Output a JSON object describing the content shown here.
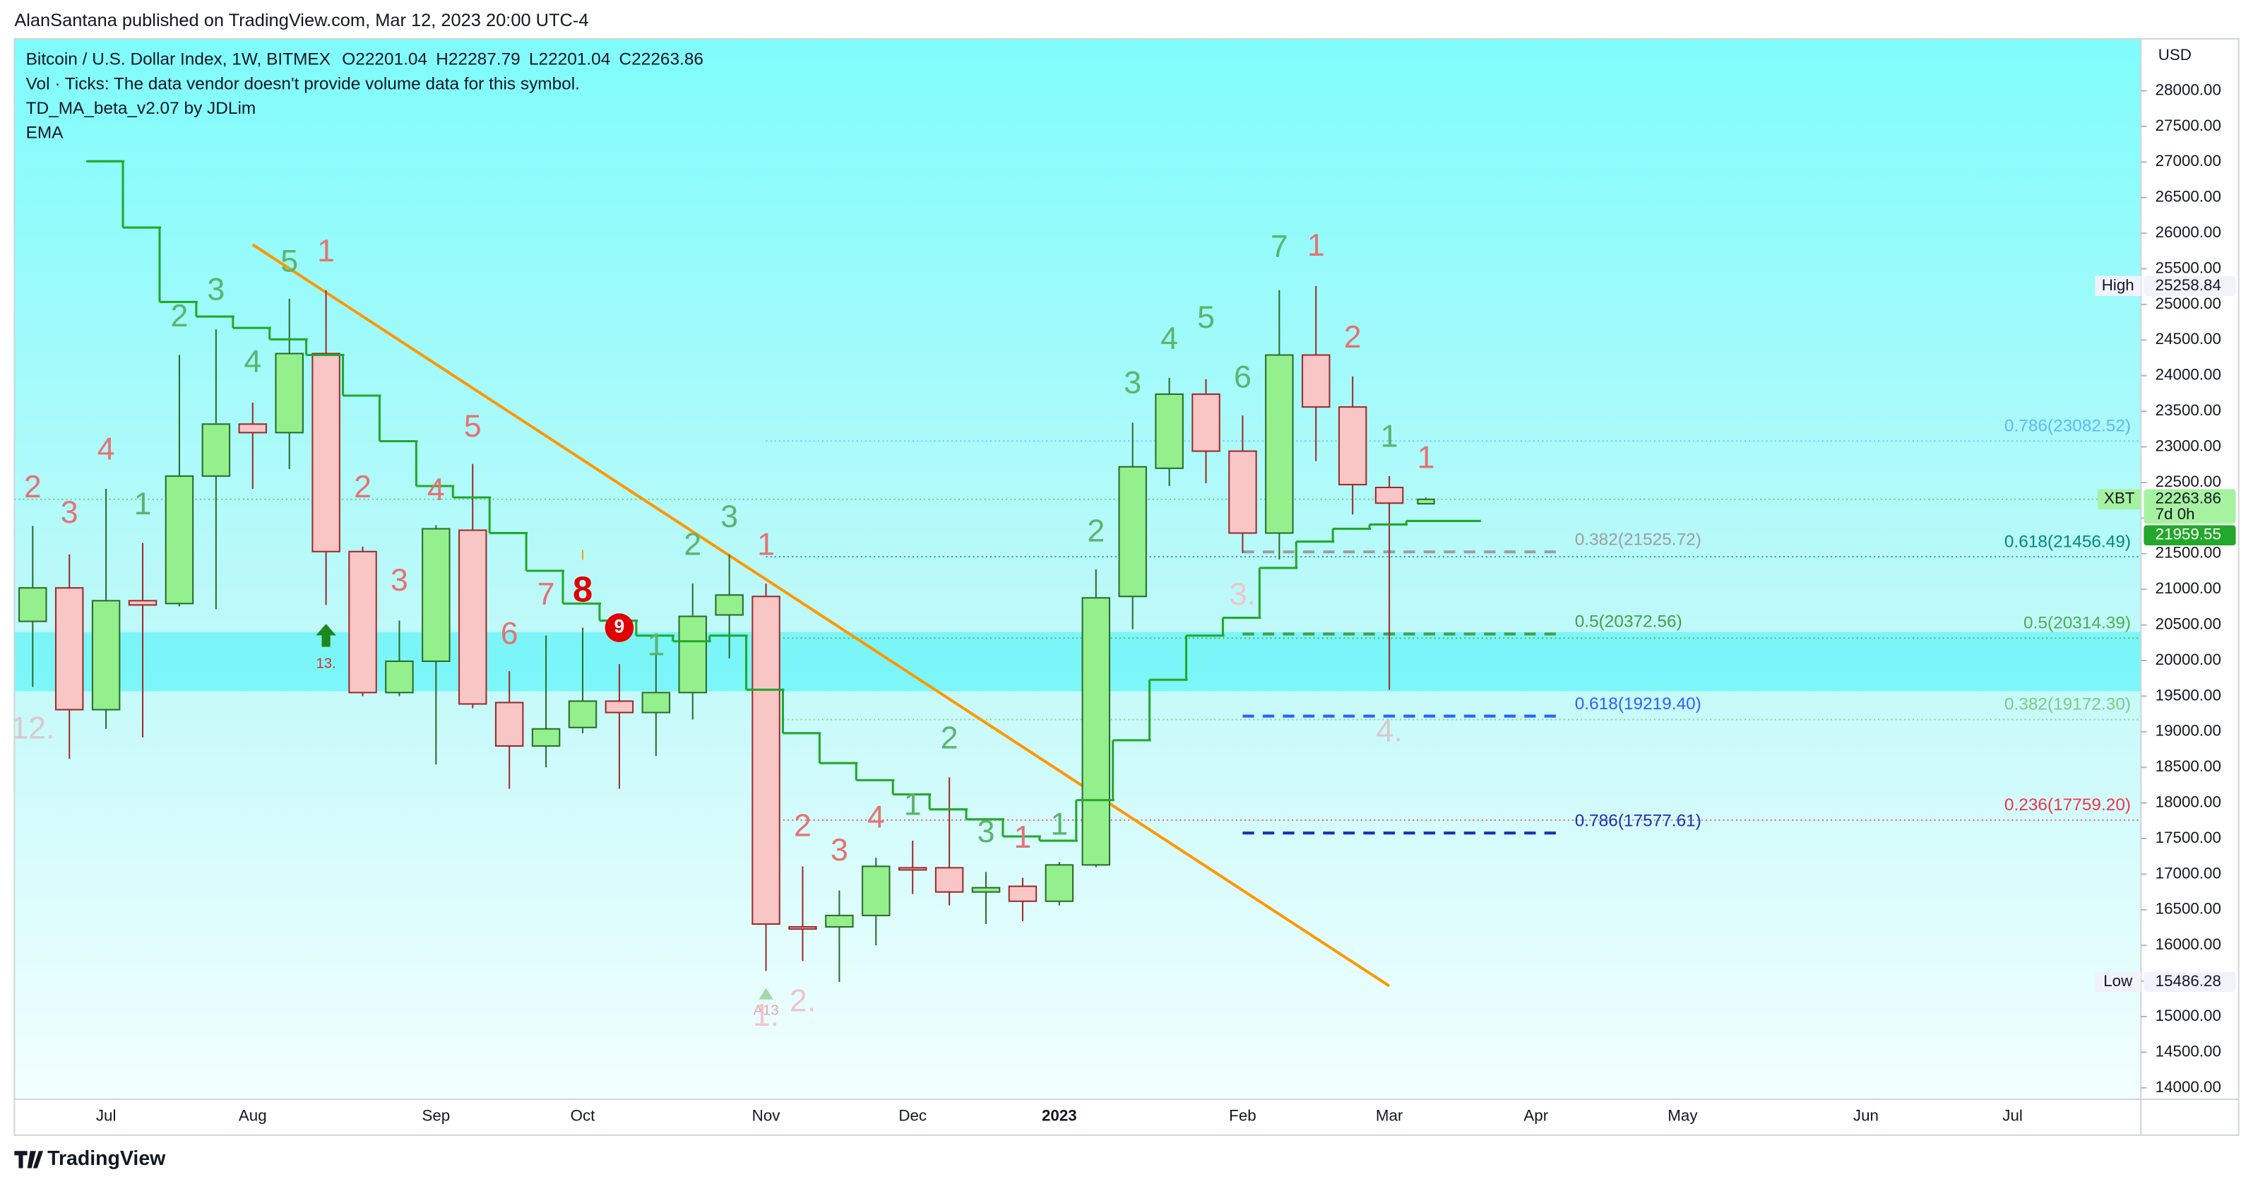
{
  "header": {
    "byline": "AlanSantana published on TradingView.com, Mar 12, 2023 20:00 UTC-4"
  },
  "footer": {
    "brand": "TradingView"
  },
  "chart_data": {
    "type": "candlestick",
    "title": "Bitcoin / U.S. Dollar Index, 1W, BITMEX",
    "ohlc_labels": [
      "O",
      "H",
      "L",
      "C"
    ],
    "notes": [
      "Vol · Ticks: The data vendor doesn't provide volume data for this symbol.",
      "TD_MA_beta_v2.07 by JDLim"
    ],
    "categories": [
      null,
      null,
      "Jul",
      null,
      null,
      null,
      "Aug",
      null,
      null,
      null,
      null,
      "Sep",
      null,
      null,
      null,
      "Oct",
      null,
      null,
      null,
      null,
      "Nov",
      null,
      null,
      null,
      "Dec",
      null,
      null,
      null,
      "2023",
      null,
      null,
      null,
      null,
      "Feb",
      null,
      null,
      null,
      "Mar",
      null,
      null,
      null,
      "Apr",
      null,
      null,
      null,
      "May",
      null,
      null,
      null,
      null,
      "Jun",
      null,
      null,
      null,
      "Jul",
      null,
      null,
      null
    ],
    "open": [
      20550,
      21020,
      19310,
      20840,
      20800,
      22590,
      23320,
      23200,
      24310,
      21530,
      19550,
      19990,
      21830,
      19410,
      18800,
      19060,
      19430,
      19270,
      19550,
      20640,
      20900,
      16260,
      16260,
      16420,
      17090,
      17090,
      16750,
      16830,
      16620,
      17130,
      20900,
      22700,
      23740,
      22940,
      21790,
      24290,
      23560,
      22430,
      22201.04,
      null,
      null,
      null,
      null,
      null,
      null,
      null,
      null,
      null,
      null,
      null,
      null,
      null,
      null,
      null,
      null,
      null,
      null,
      null
    ],
    "high": [
      21890,
      21490,
      22410,
      21650,
      24290,
      24650,
      23620,
      25080,
      25200,
      21600,
      20560,
      21900,
      22760,
      19850,
      20350,
      20460,
      19950,
      20380,
      21080,
      21490,
      21080,
      17110,
      16770,
      17230,
      17470,
      18360,
      17030,
      16950,
      17170,
      21280,
      23340,
      23970,
      23950,
      23440,
      25200,
      25258.84,
      23990,
      22590,
      22287.79,
      null,
      null,
      null,
      null,
      null,
      null,
      null,
      null,
      null,
      null,
      null,
      null,
      null,
      null,
      null,
      null,
      null,
      null,
      null
    ],
    "low": [
      19630,
      18620,
      19040,
      18920,
      20760,
      20720,
      22410,
      22690,
      20780,
      19500,
      19500,
      18540,
      19330,
      18200,
      18500,
      18980,
      18200,
      18660,
      19170,
      20030,
      15640,
      15780,
      15486.28,
      16000,
      16720,
      16560,
      16300,
      16340,
      16560,
      17100,
      20440,
      22450,
      22490,
      21510,
      21420,
      22800,
      22050,
      19590,
      22201.04,
      null,
      null,
      null,
      null,
      null,
      null,
      null,
      null,
      null,
      null,
      null,
      null,
      null,
      null,
      null,
      null,
      null,
      null,
      null
    ],
    "close": [
      21020,
      19310,
      20840,
      20780,
      22590,
      23320,
      23200,
      24310,
      21530,
      19550,
      19990,
      21850,
      19390,
      18800,
      19040,
      19430,
      19270,
      19550,
      20620,
      20920,
      16300,
      16240,
      16420,
      17110,
      17070,
      16750,
      16810,
      16620,
      17130,
      20880,
      22720,
      23740,
      22940,
      21790,
      24290,
      23560,
      22470,
      22210,
      22263.86,
      null,
      null,
      null,
      null,
      null,
      null,
      null,
      null,
      null,
      null,
      null,
      null,
      null,
      null,
      null,
      null,
      null,
      null,
      null
    ],
    "colors": {
      "up": "#93f08c",
      "up_edge": "#2b6b2b",
      "down": "#f9c6c6",
      "down_edge": "#9c2a2a"
    },
    "series": [
      {
        "name": "EMA",
        "color": "#22a82a",
        "values": [
          null,
          null,
          27010,
          26080,
          25035,
          24830,
          24670,
          24510,
          24290,
          23720,
          23080,
          22450,
          22290,
          21790,
          21260,
          20800,
          20560,
          20350,
          20270,
          20350,
          19590,
          18980,
          18560,
          18320,
          18120,
          17910,
          17770,
          17530,
          17470,
          18040,
          18880,
          19730,
          20350,
          20600,
          21300,
          21670,
          21850,
          21910,
          21959.55,
          null,
          null,
          null,
          null,
          null,
          null,
          null,
          null,
          null,
          null,
          null,
          null,
          null,
          null,
          null,
          null,
          null,
          null,
          null
        ]
      }
    ],
    "y_unit": "USD",
    "symbol_tag": "XBT",
    "countdown": "7d 0h",
    "high_tag": "High",
    "low_tag": "Low",
    "ylim": [
      13840,
      28730
    ],
    "yticks": [
      {
        "value": 14000,
        "label": "14000.00"
      },
      {
        "value": 14500,
        "label": "14500.00"
      },
      {
        "value": 15000,
        "label": "15000.00"
      },
      {
        "value": 15500,
        "label": "15500.00"
      },
      {
        "value": 16000,
        "label": "16000.00"
      },
      {
        "value": 16500,
        "label": "16500.00"
      },
      {
        "value": 17000,
        "label": "17000.00"
      },
      {
        "value": 17500,
        "label": "17500.00"
      },
      {
        "value": 18000,
        "label": "18000.00"
      },
      {
        "value": 18500,
        "label": "18500.00"
      },
      {
        "value": 19000,
        "label": "19000.00"
      },
      {
        "value": 19500,
        "label": "19500.00"
      },
      {
        "value": 20000,
        "label": "20000.00"
      },
      {
        "value": 20500,
        "label": "20500.00"
      },
      {
        "value": 21000,
        "label": "21000.00"
      },
      {
        "value": 21500,
        "label": "21500.00"
      },
      {
        "value": 22000,
        "label": "22000.00"
      },
      {
        "value": 22500,
        "label": "22500.00"
      },
      {
        "value": 23000,
        "label": "23000.00"
      },
      {
        "value": 23500,
        "label": "23500.00"
      },
      {
        "value": 24000,
        "label": "24000.00"
      },
      {
        "value": 24500,
        "label": "24500.00"
      },
      {
        "value": 25000,
        "label": "25000.00"
      },
      {
        "value": 25500,
        "label": "25500.00"
      },
      {
        "value": 26000,
        "label": "26000.00"
      },
      {
        "value": 26500,
        "label": "26500.00"
      },
      {
        "value": 27000,
        "label": "27000.00"
      },
      {
        "value": 27500,
        "label": "27500.00"
      },
      {
        "value": 28000,
        "label": "28000.00"
      }
    ],
    "zone": [
      19570,
      20400
    ],
    "trendline": {
      "color": "#ff9800",
      "from": {
        "index": 6,
        "price": 25840
      },
      "to": {
        "index": 37,
        "price": 15430
      }
    },
    "fib_levels": [
      {
        "label": "0.786(23082.52)",
        "value": 23082.52,
        "style": "dotted",
        "color": "#64b5f6"
      },
      {
        "label": "0.618(21456.49)",
        "value": 21456.49,
        "style": "dotted",
        "color": "#00897b"
      },
      {
        "label": "0.5(20314.39)",
        "value": 20314.39,
        "style": "dotted",
        "color": "#4caf50"
      },
      {
        "label": "0.382(19172.30)",
        "value": 19172.3,
        "style": "dotted",
        "color": "#81c784"
      },
      {
        "label": "0.236(17759.20)",
        "value": 17759.2,
        "style": "dotted",
        "color": "#f23645"
      },
      {
        "label": "0.382(21525.72)",
        "value": 21525.72,
        "style": "dashed",
        "color": "#9e9e9e"
      },
      {
        "label": "0.5(20372.56)",
        "value": 20372.56,
        "style": "dashed",
        "color": "#43a047"
      },
      {
        "label": "0.618(19219.40)",
        "value": 19219.4,
        "style": "dashed",
        "color": "#2962ff"
      },
      {
        "label": "0.786(17577.61)",
        "value": 17577.61,
        "style": "dashed",
        "color": "#1a2fb8"
      }
    ],
    "annotations": [
      {
        "text": "2",
        "index": 0,
        "price": 22410,
        "color": "#e57373"
      },
      {
        "text": "3",
        "index": 1,
        "price": 22050,
        "color": "#e57373"
      },
      {
        "text": "4",
        "index": 2,
        "price": 22940,
        "color": "#e57373"
      },
      {
        "text": "1",
        "index": 3,
        "price": 22170,
        "color": "#5bb46e"
      },
      {
        "text": "2",
        "index": 4,
        "price": 24810,
        "color": "#5bb46e"
      },
      {
        "text": "3",
        "index": 5,
        "price": 25180,
        "color": "#5bb46e"
      },
      {
        "text": "4",
        "index": 6,
        "price": 24170,
        "color": "#5bb46e"
      },
      {
        "text": "5",
        "index": 7,
        "price": 25580,
        "color": "#5bb46e"
      },
      {
        "text": "1",
        "index": 8,
        "price": 25720,
        "color": "#e57373"
      },
      {
        "text": "2",
        "index": 9,
        "price": 22410,
        "color": "#e57373"
      },
      {
        "text": "3",
        "index": 10,
        "price": 21100,
        "color": "#e57373"
      },
      {
        "text": "4",
        "index": 11,
        "price": 22370,
        "color": "#e57373"
      },
      {
        "text": "5",
        "index": 12,
        "price": 23260,
        "color": "#e57373"
      },
      {
        "text": "6",
        "index": 13,
        "price": 20350,
        "color": "#e57373"
      },
      {
        "text": "7",
        "index": 14,
        "price": 20900,
        "color": "#e57373"
      },
      {
        "text": "8",
        "index": 15,
        "price": 20960,
        "color": "#e00000",
        "size": "large"
      },
      {
        "text": "I",
        "index": 15,
        "price": 21465,
        "color": "#ff9800",
        "size": "small"
      },
      {
        "text": "9",
        "index": 16,
        "price": 20460,
        "color": "#ffffff",
        "marker": "circle"
      },
      {
        "text": "1",
        "index": 17,
        "price": 20190,
        "color": "#5bb46e"
      },
      {
        "text": "2",
        "index": 18,
        "price": 21600,
        "color": "#5bb46e"
      },
      {
        "text": "3",
        "index": 19,
        "price": 21990,
        "color": "#5bb46e"
      },
      {
        "text": "1",
        "index": 20,
        "price": 21600,
        "color": "#e57373"
      },
      {
        "text": "2",
        "index": 21,
        "price": 17650,
        "color": "#e57373"
      },
      {
        "text": "3",
        "index": 22,
        "price": 17310,
        "color": "#e57373"
      },
      {
        "text": "4",
        "index": 23,
        "price": 17770,
        "color": "#e57373"
      },
      {
        "text": "1",
        "index": 24,
        "price": 17950,
        "color": "#5bb46e"
      },
      {
        "text": "2",
        "index": 25,
        "price": 18880,
        "color": "#5bb46e"
      },
      {
        "text": "3",
        "index": 26,
        "price": 17570,
        "color": "#5bb46e"
      },
      {
        "text": "1",
        "index": 27,
        "price": 17490,
        "color": "#e57373"
      },
      {
        "text": "1",
        "index": 28,
        "price": 17670,
        "color": "#5bb46e"
      },
      {
        "text": "2",
        "index": 29,
        "price": 21790,
        "color": "#5bb46e"
      },
      {
        "text": "3",
        "index": 30,
        "price": 23870,
        "color": "#5bb46e"
      },
      {
        "text": "4",
        "index": 31,
        "price": 24490,
        "color": "#5bb46e"
      },
      {
        "text": "5",
        "index": 32,
        "price": 24790,
        "color": "#5bb46e"
      },
      {
        "text": "6",
        "index": 33,
        "price": 23950,
        "color": "#5bb46e"
      },
      {
        "text": "7",
        "index": 34,
        "price": 25780,
        "color": "#5bb46e"
      },
      {
        "text": "1",
        "index": 35,
        "price": 25800,
        "color": "#e57373"
      },
      {
        "text": "2",
        "index": 36,
        "price": 24510,
        "color": "#e57373"
      },
      {
        "text": "1",
        "index": 37,
        "price": 23120,
        "color": "#5bb46e"
      },
      {
        "text": "1",
        "index": 38,
        "price": 22820,
        "color": "#e57373"
      },
      {
        "text": "12.",
        "index": 0,
        "price": 19020,
        "color": "#d9c9cd"
      },
      {
        "text": "13.",
        "index": 8,
        "price": 19950,
        "color": "#d32f2f",
        "size": "small",
        "marker": "arrow-up"
      },
      {
        "text": "A13",
        "index": 20,
        "price": 15080,
        "color": "#e0a8b0",
        "size": "small",
        "marker": "triangle-up"
      },
      {
        "text": "1.",
        "index": 20,
        "price": 14990,
        "color": "#f2c4c8"
      },
      {
        "text": "2.",
        "index": 21,
        "price": 15190,
        "color": "#f2c4c8"
      },
      {
        "text": "3.",
        "index": 33,
        "price": 20900,
        "color": "#f2c4c8"
      },
      {
        "text": "4.",
        "index": 37,
        "price": 18980,
        "color": "#d9c9cd"
      }
    ]
  }
}
